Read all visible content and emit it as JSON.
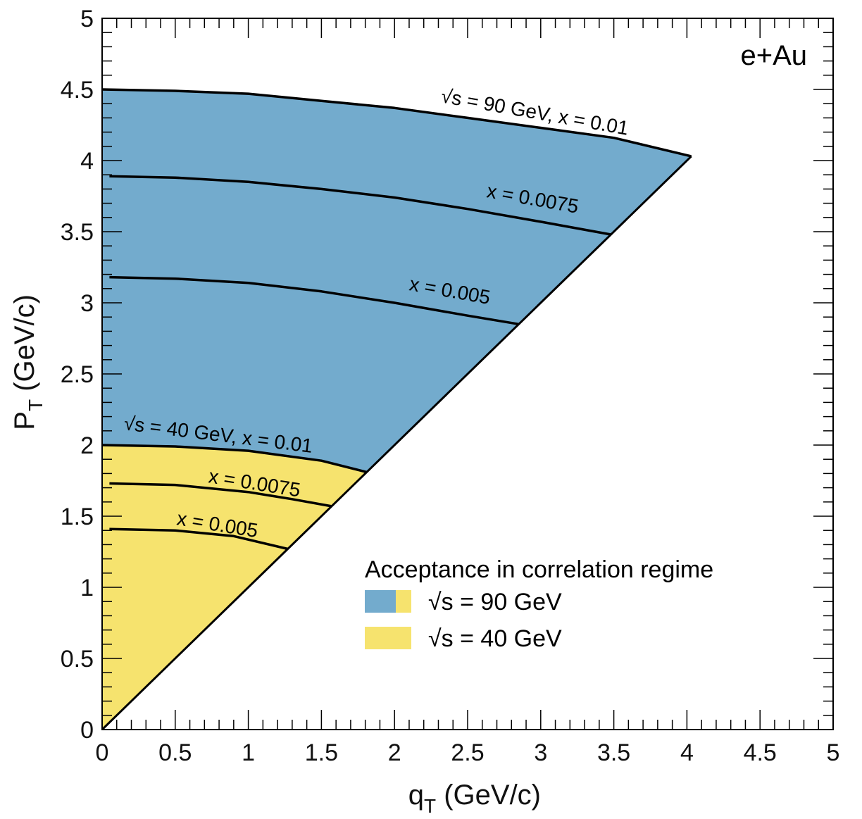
{
  "chart_data": {
    "type": "area",
    "annotation": "e+Au",
    "xlabel": {
      "main": "q",
      "sub": "T",
      "unit": " (GeV/c)"
    },
    "ylabel": {
      "main": "P",
      "sub": "T",
      "unit": " (GeV/c)"
    },
    "xlim": [
      0,
      5
    ],
    "ylim": [
      0,
      5
    ],
    "x_ticks": [
      "0",
      "0.5",
      "1",
      "1.5",
      "2",
      "2.5",
      "3",
      "3.5",
      "4",
      "4.5",
      "5"
    ],
    "y_ticks": [
      "0",
      "0.5",
      "1",
      "1.5",
      "2",
      "2.5",
      "3",
      "3.5",
      "4",
      "4.5",
      "5"
    ],
    "colors": {
      "s90": "#73abcd",
      "s40": "#f6e36e",
      "line": "#000000"
    },
    "regions": [
      {
        "name": "√s = 90 GeV",
        "color": "#73abcd",
        "boundary": [
          [
            0,
            4.5
          ],
          [
            0.5,
            4.49
          ],
          [
            1.0,
            4.47
          ],
          [
            1.5,
            4.42
          ],
          [
            2.0,
            4.37
          ],
          [
            2.5,
            4.3
          ],
          [
            3.0,
            4.23
          ],
          [
            3.5,
            4.16
          ],
          [
            4.03,
            4.03
          ],
          [
            0,
            0
          ]
        ]
      },
      {
        "name": "√s = 40 GeV",
        "color": "#f6e36e",
        "boundary": [
          [
            0,
            2.0
          ],
          [
            0.5,
            1.99
          ],
          [
            1.0,
            1.96
          ],
          [
            1.5,
            1.89
          ],
          [
            1.81,
            1.81
          ],
          [
            0,
            0
          ]
        ]
      }
    ],
    "curves": [
      {
        "label_prefix": "√s = 90 GeV,",
        "label": "x = 0.01",
        "points": [
          [
            0,
            4.5
          ],
          [
            0.5,
            4.49
          ],
          [
            1.0,
            4.47
          ],
          [
            1.5,
            4.42
          ],
          [
            2.0,
            4.37
          ],
          [
            2.5,
            4.3
          ],
          [
            3.0,
            4.23
          ],
          [
            3.5,
            4.16
          ],
          [
            4.03,
            4.03
          ]
        ]
      },
      {
        "label": "x = 0.0075",
        "points": [
          [
            0.05,
            3.89
          ],
          [
            0.5,
            3.88
          ],
          [
            1.0,
            3.85
          ],
          [
            1.5,
            3.8
          ],
          [
            2.0,
            3.74
          ],
          [
            2.5,
            3.66
          ],
          [
            3.0,
            3.57
          ],
          [
            3.48,
            3.48
          ]
        ]
      },
      {
        "label": "x = 0.005",
        "points": [
          [
            0.05,
            3.18
          ],
          [
            0.5,
            3.17
          ],
          [
            1.0,
            3.14
          ],
          [
            1.5,
            3.08
          ],
          [
            2.0,
            3.0
          ],
          [
            2.5,
            2.91
          ],
          [
            2.85,
            2.85
          ]
        ]
      },
      {
        "label_prefix": "√s = 40 GeV,",
        "label": "x = 0.01",
        "points": [
          [
            0,
            2.0
          ],
          [
            0.5,
            1.99
          ],
          [
            1.0,
            1.96
          ],
          [
            1.5,
            1.89
          ],
          [
            1.81,
            1.81
          ]
        ]
      },
      {
        "label": "x = 0.0075",
        "points": [
          [
            0.05,
            1.73
          ],
          [
            0.5,
            1.72
          ],
          [
            1.0,
            1.67
          ],
          [
            1.3,
            1.62
          ],
          [
            1.57,
            1.57
          ]
        ]
      },
      {
        "label": "x = 0.005",
        "points": [
          [
            0.05,
            1.41
          ],
          [
            0.5,
            1.4
          ],
          [
            0.9,
            1.36
          ],
          [
            1.27,
            1.27
          ]
        ]
      }
    ],
    "diagonal": [
      [
        0,
        0
      ],
      [
        4.03,
        4.03
      ]
    ],
    "legend": {
      "title": "Acceptance in correlation regime",
      "entries": [
        {
          "label": "√s = 90 GeV",
          "colors": [
            "#73abcd",
            "#f6e36e"
          ]
        },
        {
          "label": "√s = 40 GeV",
          "colors": [
            "#f6e36e"
          ]
        }
      ]
    }
  }
}
